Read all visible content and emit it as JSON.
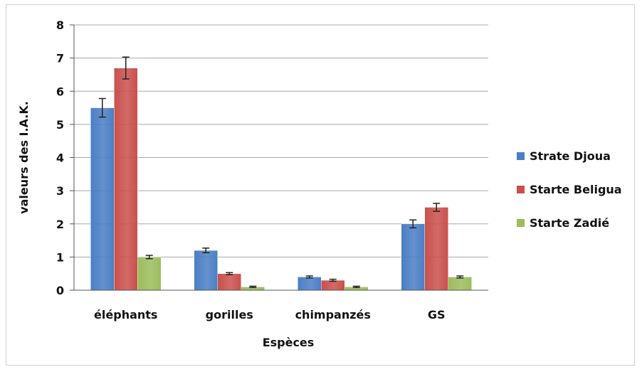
{
  "chart_data": {
    "type": "bar",
    "categories": [
      "éléphants",
      "gorilles",
      "chimpanzés",
      "GS"
    ],
    "series": [
      {
        "name": "Strate Djoua",
        "color": "#4a7ec4",
        "values": [
          5.5,
          1.2,
          0.4,
          2.0
        ],
        "errors": [
          0.28,
          0.07,
          0.03,
          0.12
        ]
      },
      {
        "name": "Starte Beligua",
        "color": "#c9504c",
        "values": [
          6.7,
          0.5,
          0.3,
          2.5
        ],
        "errors": [
          0.33,
          0.03,
          0.03,
          0.12
        ]
      },
      {
        "name": "Starte Zadié",
        "color": "#9bbd5c",
        "values": [
          1.0,
          0.1,
          0.1,
          0.4
        ],
        "errors": [
          0.05,
          0.02,
          0.02,
          0.03
        ]
      }
    ],
    "xlabel": "Espèces",
    "ylabel": "valeurs des I.A.K.",
    "ylim": [
      0,
      8
    ],
    "yticks": [
      "0",
      "1",
      "2",
      "3",
      "4",
      "5",
      "6",
      "7",
      "8"
    ],
    "grid": true,
    "legend_position": "right"
  }
}
